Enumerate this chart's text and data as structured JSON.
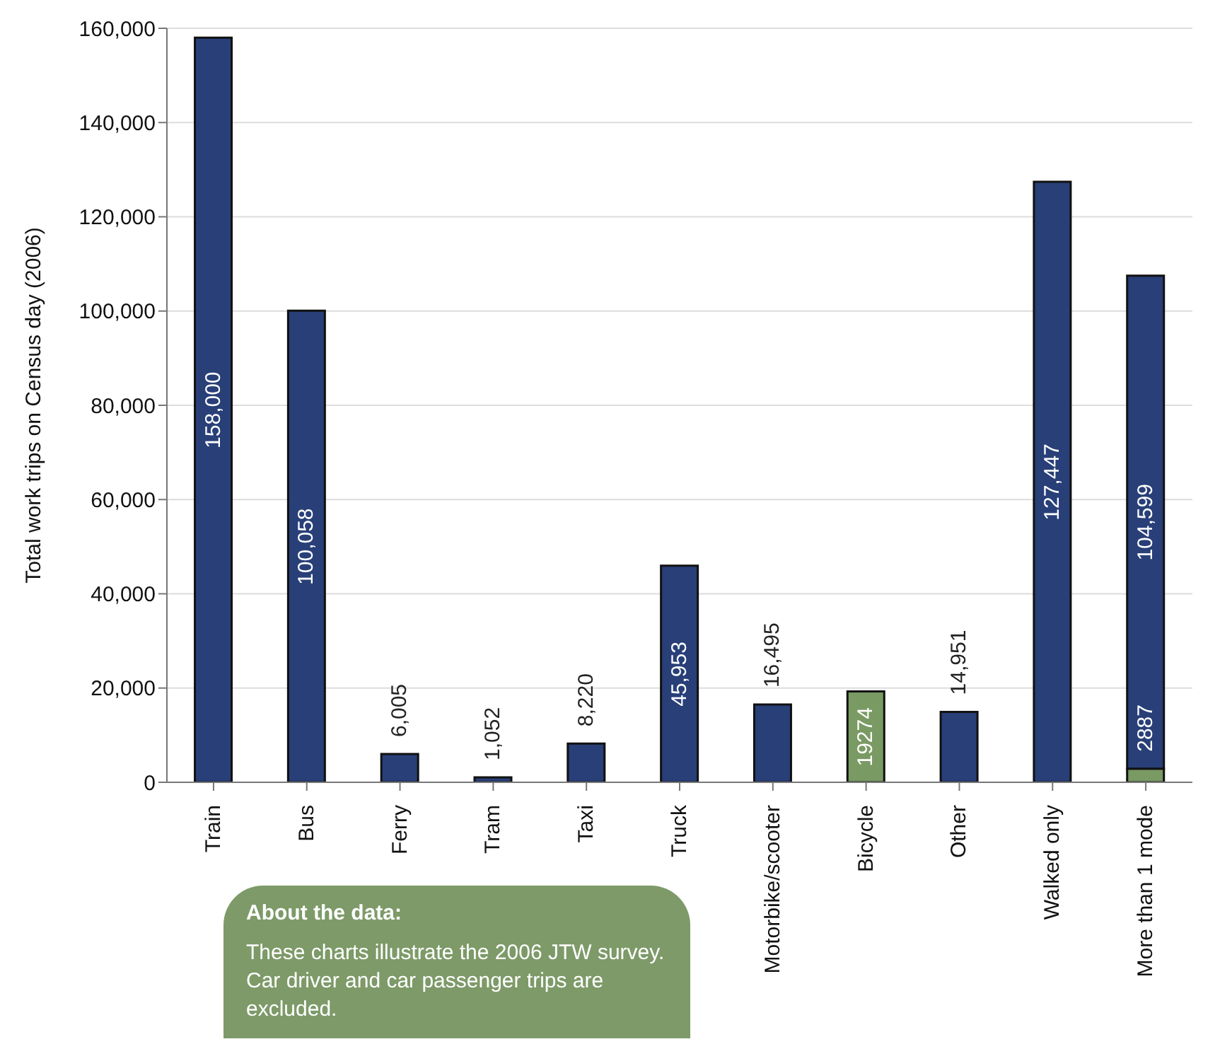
{
  "chart_data": {
    "type": "bar",
    "stacked": true,
    "ylabel": "Total work trips on Census day (2006)",
    "categories": [
      "Train",
      "Bus",
      "Ferry",
      "Tram",
      "Taxi",
      "Truck",
      "Motorbike/scooter",
      "Bicycle",
      "Other",
      "Walked only",
      "More than 1 mode"
    ],
    "series": [
      {
        "color": "#7a9a63",
        "values": [
          null,
          null,
          null,
          null,
          null,
          null,
          null,
          19274,
          null,
          null,
          2887
        ],
        "value_labels": [
          null,
          null,
          null,
          null,
          null,
          null,
          null,
          "19274",
          null,
          null,
          "2887"
        ]
      },
      {
        "color": "#283f78",
        "values": [
          158000,
          100058,
          6005,
          1052,
          8220,
          45953,
          16495,
          null,
          14951,
          127447,
          104599
        ],
        "value_labels": [
          "158,000",
          "100,058",
          "6,005",
          "1,052",
          "8,220",
          "45,953",
          "16,495",
          null,
          "14,951",
          "127,447",
          "104,599"
        ]
      }
    ],
    "ylim": [
      0,
      160000
    ],
    "yticks": [
      {
        "value": 0,
        "label": "0"
      },
      {
        "value": 20000,
        "label": "20,000"
      },
      {
        "value": 40000,
        "label": "40,000"
      },
      {
        "value": 60000,
        "label": "60,000"
      },
      {
        "value": 80000,
        "label": "80,000"
      },
      {
        "value": 100000,
        "label": "100,000"
      },
      {
        "value": 120000,
        "label": "120,000"
      },
      {
        "value": 140000,
        "label": "140,000"
      },
      {
        "value": 160000,
        "label": "160,000"
      }
    ],
    "grid": "y",
    "annotations": [
      "About the data:",
      "These charts illustrate the 2006 JTW survey. Car driver and car passenger trips are excluded."
    ]
  }
}
